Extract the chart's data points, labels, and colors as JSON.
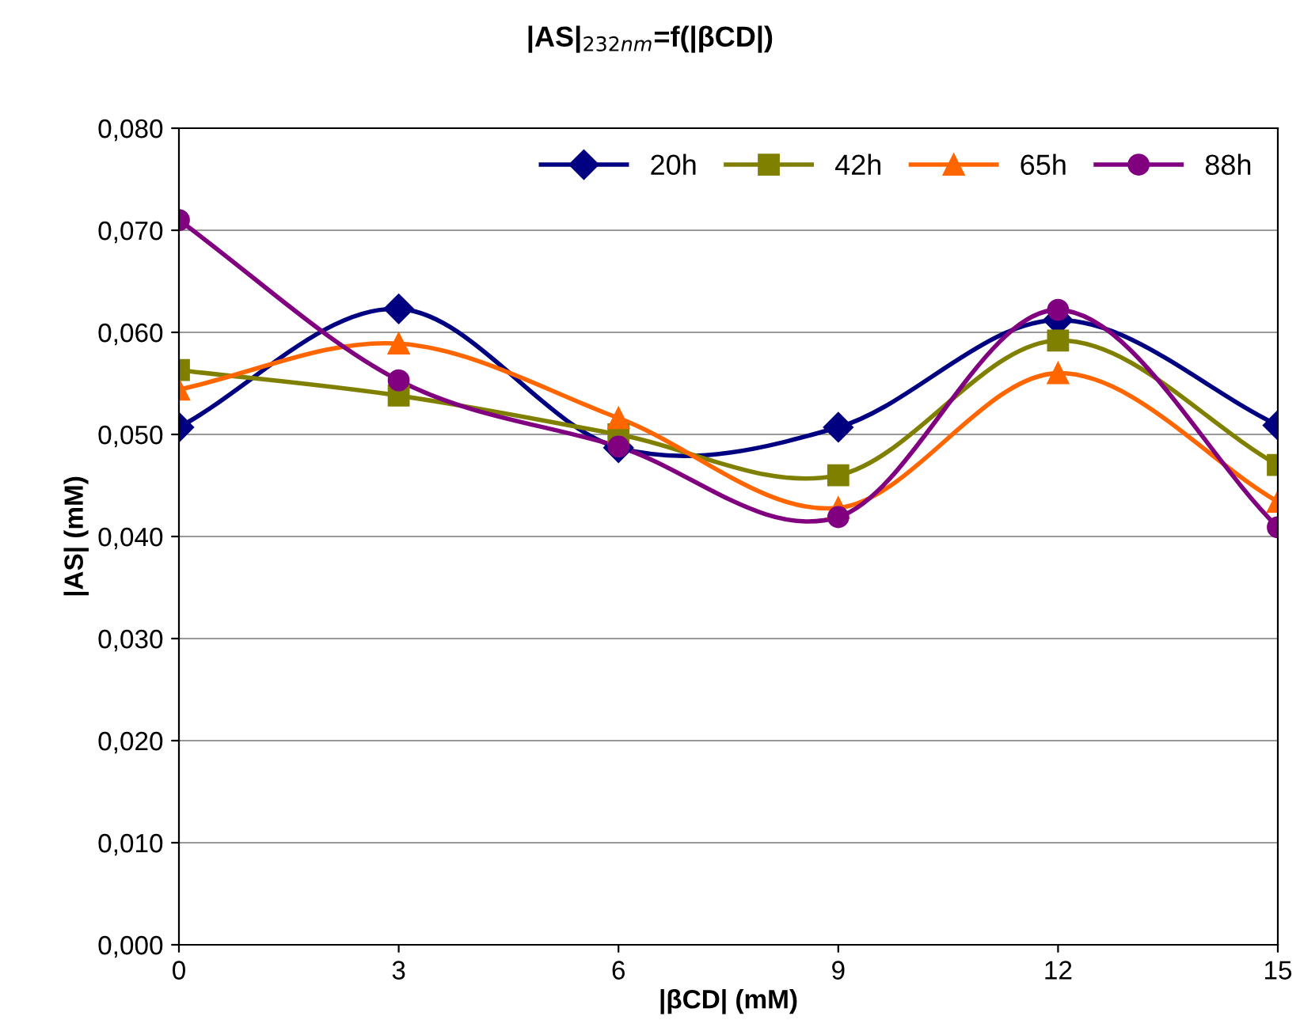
{
  "chart_data": {
    "type": "line",
    "title": "|AS|$_{232nm}$=f(|βCD|)",
    "xlabel": "|βCD| (mM)",
    "ylabel": "|AS| (mM)",
    "x": [
      0,
      3,
      6,
      9,
      12,
      15
    ],
    "xlim": [
      0,
      15
    ],
    "xticks": [
      0,
      3,
      6,
      9,
      12,
      15
    ],
    "ylim": [
      0,
      0.08
    ],
    "yticks": [
      {
        "value": 0,
        "label": "0,000"
      },
      {
        "value": 0.01,
        "label": "0,010"
      },
      {
        "value": 0.02,
        "label": "0,020"
      },
      {
        "value": 0.03,
        "label": "0,030"
      },
      {
        "value": 0.04,
        "label": "0,040"
      },
      {
        "value": 0.05,
        "label": "0,050"
      },
      {
        "value": 0.06,
        "label": "0,060"
      },
      {
        "value": 0.07,
        "label": "0,070"
      },
      {
        "value": 0.08,
        "label": "0,080"
      }
    ],
    "grid": "y",
    "legend": "top right",
    "series": [
      {
        "name": "20h",
        "color": "#000080",
        "marker": "diamond",
        "values": [
          0.0507,
          0.0623,
          0.0487,
          0.0507,
          0.0612,
          0.0509
        ]
      },
      {
        "name": "42h",
        "color": "#808000",
        "marker": "square",
        "values": [
          0.0563,
          0.0538,
          0.05,
          0.046,
          0.0592,
          0.047
        ]
      },
      {
        "name": "65h",
        "color": "#ff6600",
        "marker": "triangle",
        "values": [
          0.0544,
          0.0589,
          0.0516,
          0.0428,
          0.056,
          0.0434
        ]
      },
      {
        "name": "88h",
        "color": "#800080",
        "marker": "circle",
        "values": [
          0.071,
          0.0553,
          0.0488,
          0.0419,
          0.0622,
          0.0409
        ]
      }
    ]
  }
}
